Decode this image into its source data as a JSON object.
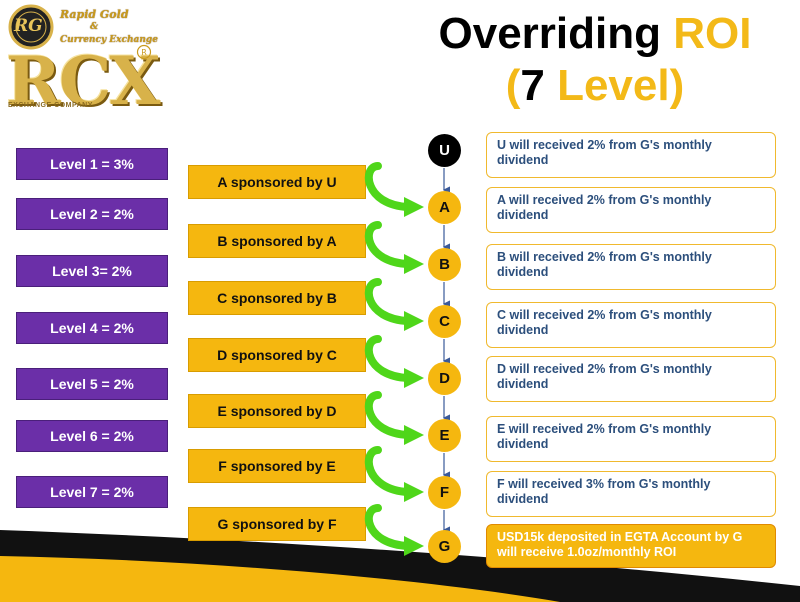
{
  "logo": {
    "rg_mark": "RG",
    "line1": "Rapid Gold",
    "line2": "&",
    "line3": "Currency Exchange",
    "big": "RCX",
    "tagline": "EXCHANGE COMPANY"
  },
  "title": {
    "line1_part1": "Overriding ",
    "line1_part2": "ROI",
    "line2_open": "(",
    "line2_num": "7",
    "line2_level": " Level",
    "line2_close": ")"
  },
  "levels": [
    "Level 1 = 3%",
    "Level 2 = 2%",
    "Level 3= 2%",
    "Level 4 = 2%",
    "Level 5 = 2%",
    "Level 6 = 2%",
    "Level 7 = 2%"
  ],
  "sponsors": [
    "A sponsored by U",
    "B sponsored by A",
    "C sponsored by B",
    "D sponsored by C",
    "E sponsored by D",
    "F sponsored by E",
    "G sponsored by F"
  ],
  "nodes": [
    "U",
    "A",
    "B",
    "C",
    "D",
    "E",
    "F",
    "G"
  ],
  "info": [
    "U will received 2% from G's monthly dividend",
    "A will received 2% from G's monthly dividend",
    "B will received 2% from G's monthly dividend",
    "C will received 2% from G's monthly dividend",
    "D will received 2% from G's monthly dividend",
    "E will received 2% from G's monthly dividend",
    "F will received 3% from G's monthly dividend",
    "USD15k deposited in EGTA Account by G will receive 1.0oz/monthly ROI"
  ],
  "colors": {
    "level_purple": "#6b2fa8",
    "sponsor_gold": "#f5b70f",
    "arrow_green": "#4fd61a",
    "info_text_blue": "#2c4f7c"
  }
}
